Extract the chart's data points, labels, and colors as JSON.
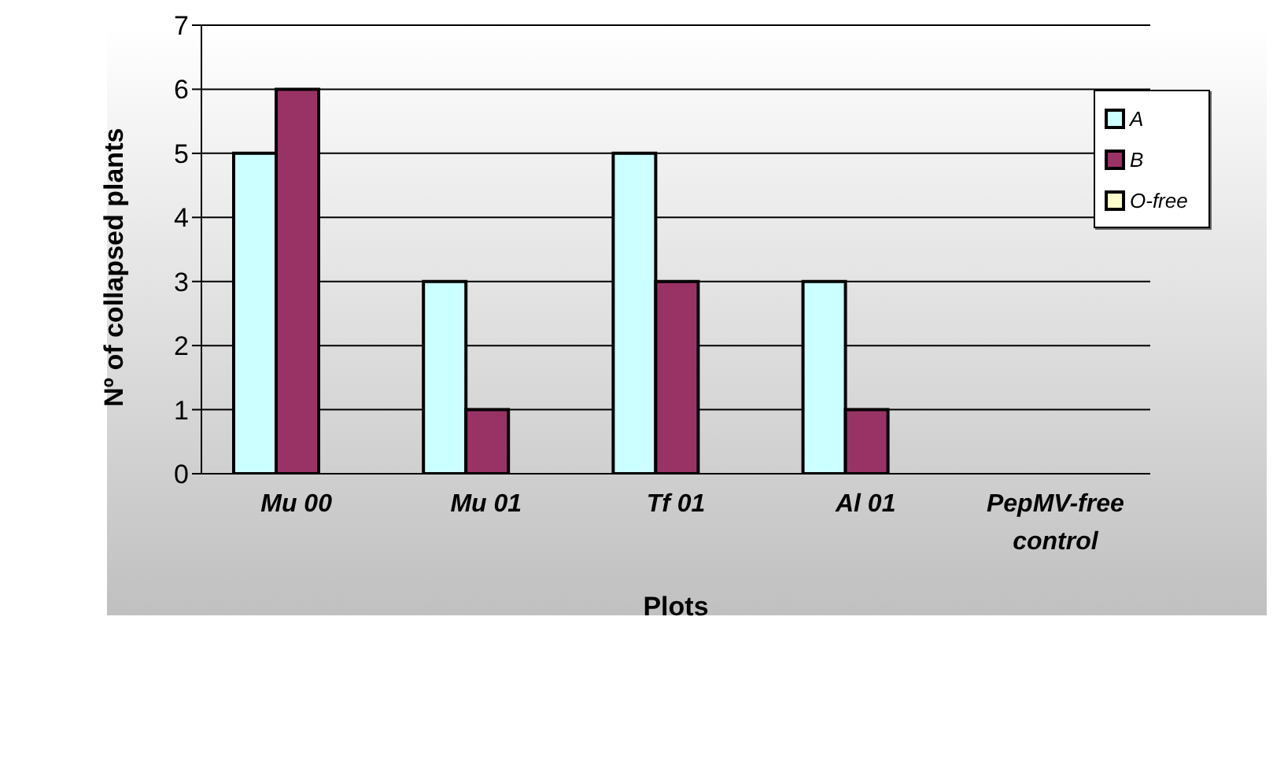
{
  "chart_data": {
    "type": "bar",
    "xlabel": "Plots",
    "ylabel": "Nº of collapsed plants",
    "categories": [
      "Mu 00",
      "Mu 01",
      "Tf 01",
      "Al 01",
      "PepMV-free control"
    ],
    "series": [
      {
        "name": "A",
        "color": "#ccffff",
        "values": [
          5,
          3,
          5,
          3,
          0
        ]
      },
      {
        "name": "B",
        "color": "#993366",
        "values": [
          6,
          1,
          3,
          1,
          0
        ]
      },
      {
        "name": "O-free",
        "color": "#ffffcc",
        "values": [
          0,
          0,
          0,
          0,
          0
        ]
      }
    ],
    "ylim": [
      0,
      7
    ],
    "yticks": [
      0,
      1,
      2,
      3,
      4,
      5,
      6,
      7
    ],
    "grid": "y",
    "legend": "top right"
  }
}
